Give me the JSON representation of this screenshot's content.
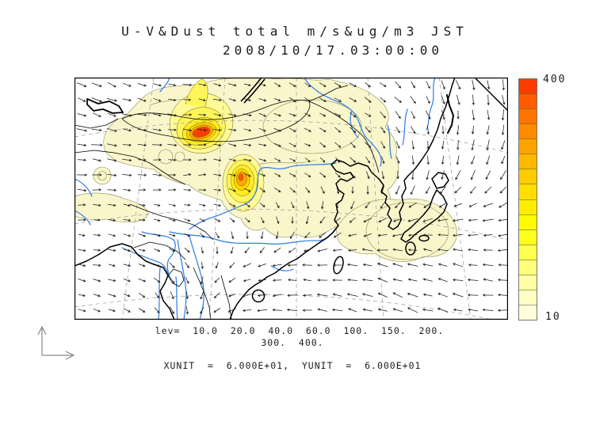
{
  "title": {
    "line1": "U-V&Dust total m/s&ug/m3 JST",
    "line2": "2008/10/17.03:00:00"
  },
  "colorbar": {
    "top_label": "400",
    "bottom_label": "10",
    "colors_top_to_bottom": [
      "#FA3C00",
      "#FF5A00",
      "#FF7300",
      "#FF8C00",
      "#FFA300",
      "#FFB800",
      "#FFCC00",
      "#FFDE00",
      "#FFED00",
      "#FFFA00",
      "#FFFF1E",
      "#FFFF50",
      "#FFFF7D",
      "#FFFFA5",
      "#FFFFC4",
      "#FFFFDC"
    ]
  },
  "footer": {
    "lev_line1": "lev=  10.0  20.0  40.0  60.0  100.  150.  200.",
    "lev_line2": "300.  400.",
    "units_line": "XUNIT  =  6.000E+01,  YUNIT  =  6.000E+01"
  },
  "chart_data": {
    "type": "map-contour-vector",
    "title": "U-V&Dust total m/s&ug/m3 JST",
    "valid_time": "2008/10/17.03:00:00",
    "vector_field_units": "m/s",
    "shaded_field_units": "ug/m3",
    "contour_levels": [
      10.0,
      20.0,
      40.0,
      60.0,
      100,
      150,
      200,
      300,
      400
    ],
    "colorbar_range": [
      10,
      400
    ],
    "xunit": "6.000E+01",
    "yunit": "6.000E+01",
    "wind_grid": {
      "cols": 10,
      "rows": 6,
      "dir_deg_screen": [
        [
          25,
          15,
          10,
          15,
          25,
          35,
          30,
          45,
          70,
          80
        ],
        [
          10,
          5,
          0,
          10,
          20,
          30,
          40,
          60,
          90,
          100
        ],
        [
          5,
          0,
          -5,
          10,
          25,
          40,
          60,
          90,
          115,
          125
        ],
        [
          5,
          10,
          15,
          30,
          60,
          110,
          150,
          165,
          170,
          170
        ],
        [
          10,
          15,
          45,
          130,
          165,
          180,
          190,
          195,
          190,
          185
        ],
        [
          15,
          30,
          80,
          160,
          175,
          185,
          195,
          200,
          195,
          185
        ]
      ],
      "rel_speed": [
        [
          0.8,
          0.7,
          0.6,
          0.55,
          0.5,
          0.5,
          0.55,
          0.6,
          0.75,
          0.8
        ],
        [
          0.85,
          0.75,
          0.65,
          0.6,
          0.5,
          0.45,
          0.5,
          0.6,
          0.7,
          0.8
        ],
        [
          0.7,
          0.6,
          0.5,
          0.45,
          0.45,
          0.45,
          0.5,
          0.6,
          0.75,
          0.8
        ],
        [
          0.5,
          0.45,
          0.4,
          0.4,
          0.45,
          0.5,
          0.6,
          0.7,
          0.8,
          0.8
        ],
        [
          0.5,
          0.45,
          0.4,
          0.5,
          0.6,
          0.7,
          0.8,
          0.85,
          0.85,
          0.8
        ],
        [
          0.55,
          0.5,
          0.5,
          0.6,
          0.7,
          0.8,
          0.85,
          0.9,
          0.85,
          0.8
        ]
      ]
    }
  }
}
